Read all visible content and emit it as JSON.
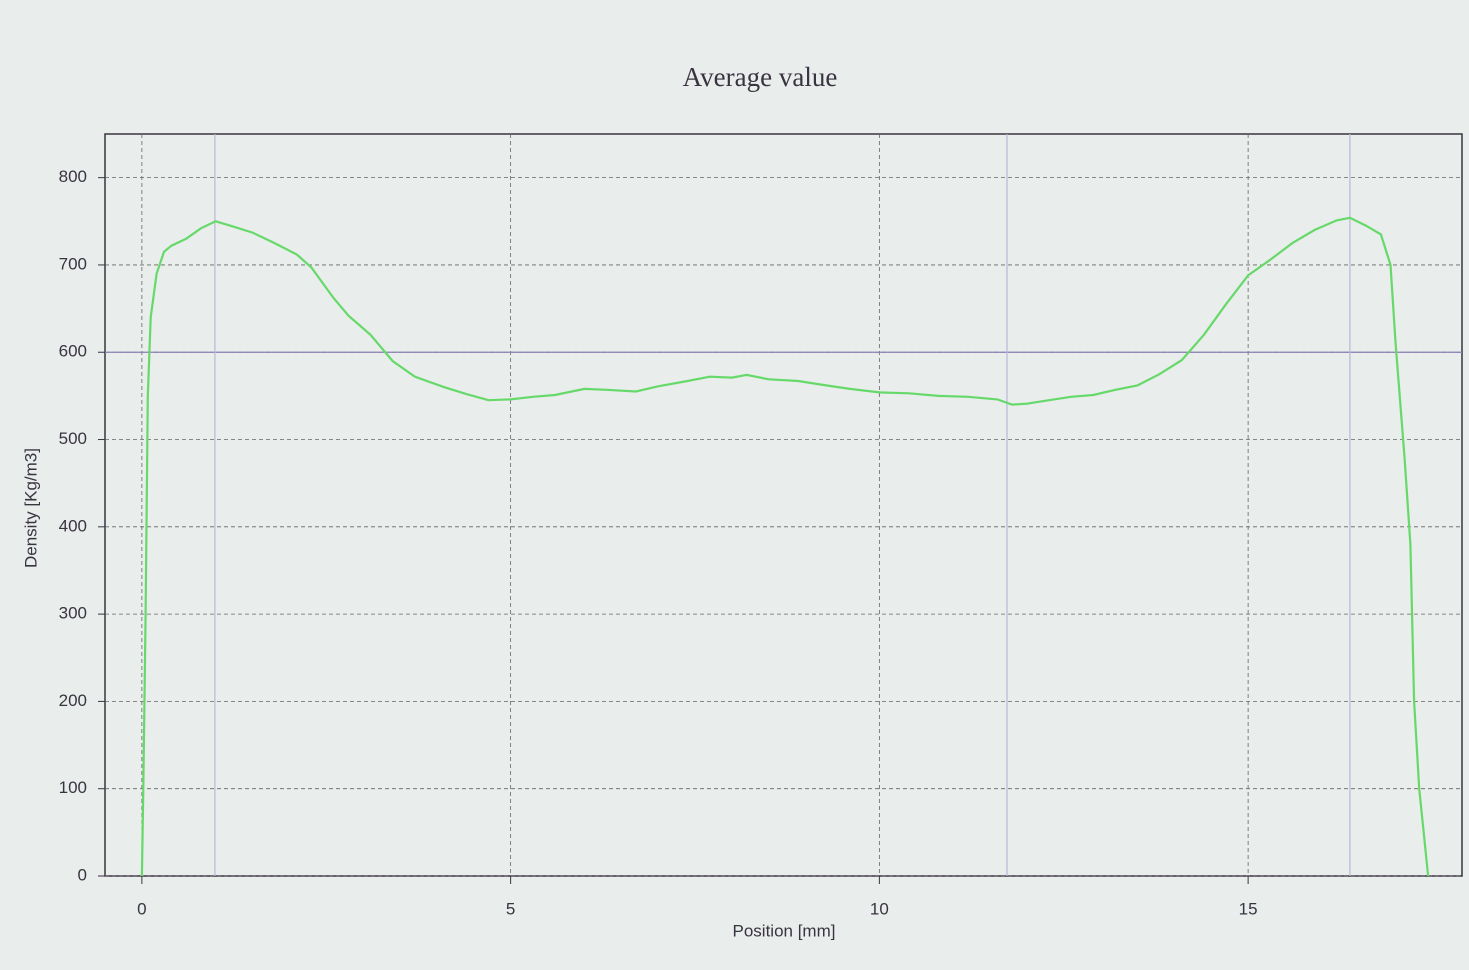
{
  "chart_data": {
    "type": "line",
    "title": "Average value",
    "x_label": "Position [mm]",
    "y_label": "Density [Kg/m3]",
    "xlim": [
      -0.5,
      17.9
    ],
    "ylim": [
      0,
      850
    ],
    "xticks": [
      0,
      5,
      10,
      15
    ],
    "yticks": [
      0,
      100,
      200,
      300,
      400,
      500,
      600,
      700,
      800
    ],
    "grid": true,
    "hline": 600,
    "vlines": [
      0.99,
      11.73,
      16.38
    ],
    "series": [
      {
        "name": "Density",
        "color": "#66d96a",
        "x": [
          0,
          0.02,
          0.05,
          0.08,
          0.12,
          0.2,
          0.3,
          0.4,
          0.6,
          0.8,
          1.0,
          1.2,
          1.5,
          1.8,
          2.1,
          2.3,
          2.6,
          2.8,
          3.1,
          3.4,
          3.7,
          4.1,
          4.4,
          4.7,
          5.0,
          5.3,
          5.6,
          6.0,
          6.3,
          6.7,
          7.0,
          7.4,
          7.7,
          8.0,
          8.2,
          8.5,
          8.9,
          9.2,
          9.6,
          10.0,
          10.4,
          10.8,
          11.2,
          11.6,
          11.8,
          12.0,
          12.3,
          12.6,
          12.9,
          13.2,
          13.5,
          13.8,
          14.1,
          14.4,
          14.7,
          15.0,
          15.3,
          15.6,
          15.9,
          16.2,
          16.38,
          16.6,
          16.8,
          16.93,
          17.0,
          17.12,
          17.2,
          17.25,
          17.32,
          17.38,
          17.44
        ],
        "values": [
          0,
          100,
          300,
          550,
          640,
          690,
          715,
          722,
          730,
          742,
          750,
          745,
          737,
          725,
          712,
          697,
          662,
          642,
          620,
          590,
          572,
          560,
          552,
          545,
          546,
          549,
          551,
          558,
          557,
          555,
          561,
          567,
          572,
          571,
          574,
          569,
          567,
          563,
          558,
          554,
          553,
          550,
          549,
          546,
          540,
          541,
          545,
          549,
          551,
          557,
          562,
          575,
          591,
          620,
          655,
          688,
          706,
          725,
          740,
          751,
          754,
          745,
          735,
          700,
          610,
          480,
          380,
          200,
          100,
          50,
          0
        ]
      }
    ]
  }
}
